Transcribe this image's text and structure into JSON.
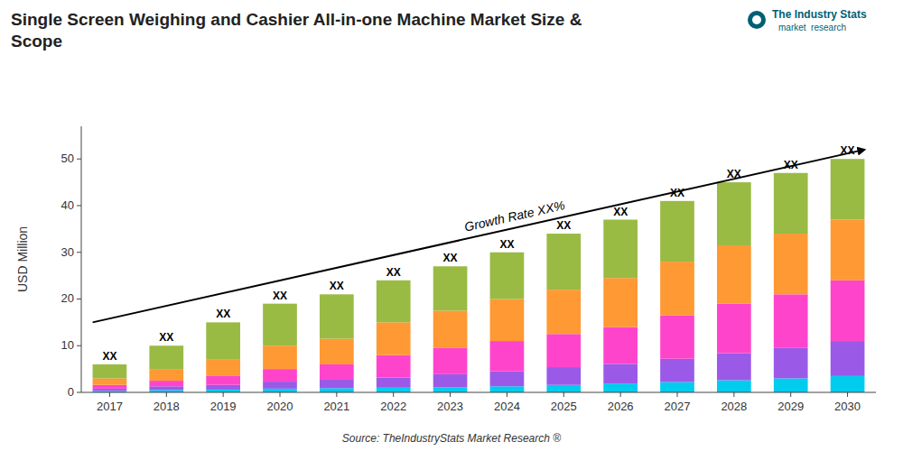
{
  "chart_data": {
    "type": "bar",
    "stacked": true,
    "grid": false,
    "title": "Single Screen Weighing and Cashier All-in-one Machine Market Size &\nScope",
    "y_label": "USD Million",
    "categories": [
      "2017",
      "2018",
      "2019",
      "2020",
      "2021",
      "2022",
      "2023",
      "2024",
      "2025",
      "2026",
      "2027",
      "2028",
      "2029",
      "2030"
    ],
    "series": [
      {
        "color": "#00CCEE",
        "values": [
          0.3,
          0.5,
          0.6,
          0.8,
          0.9,
          1.0,
          1.1,
          1.3,
          1.6,
          1.9,
          2.2,
          2.6,
          3.0,
          3.5
        ]
      },
      {
        "color": "#9B59E8",
        "values": [
          0.5,
          0.8,
          1.0,
          1.5,
          1.8,
          2.2,
          2.8,
          3.2,
          3.8,
          4.2,
          5.0,
          5.8,
          6.5,
          7.5
        ]
      },
      {
        "color": "#FF44CC",
        "values": [
          0.8,
          1.2,
          1.9,
          2.7,
          3.3,
          4.8,
          5.6,
          6.5,
          7.1,
          7.9,
          9.3,
          10.6,
          11.5,
          13.0
        ]
      },
      {
        "color": "#FF9933",
        "values": [
          1.4,
          2.5,
          3.5,
          5.0,
          5.5,
          7.0,
          8.0,
          9.0,
          9.5,
          10.5,
          11.5,
          12.5,
          13.0,
          13.0
        ]
      },
      {
        "color": "#99BB44",
        "values": [
          3.0,
          5.0,
          8.0,
          9.0,
          9.5,
          9.0,
          9.5,
          10.0,
          12.0,
          12.5,
          13.0,
          13.5,
          13.0,
          13.0
        ]
      }
    ],
    "ylim": [
      0,
      57
    ],
    "yticks": [
      0,
      10,
      20,
      30,
      40,
      50
    ],
    "annotations": [
      {
        "text": "XX",
        "x": "2017",
        "y": 6
      },
      {
        "text": "XX",
        "x": "2018",
        "y": 10
      },
      {
        "text": "XX",
        "x": "2019",
        "y": 15
      },
      {
        "text": "XX",
        "x": "2020",
        "y": 19
      },
      {
        "text": "XX",
        "x": "2021",
        "y": 21
      },
      {
        "text": "XX",
        "x": "2022",
        "y": 24
      },
      {
        "text": "XX",
        "x": "2023",
        "y": 27
      },
      {
        "text": "XX",
        "x": "2024",
        "y": 30
      },
      {
        "text": "XX",
        "x": "2025",
        "y": 34
      },
      {
        "text": "XX",
        "x": "2026",
        "y": 37
      },
      {
        "text": "XX",
        "x": "2027",
        "y": 41
      },
      {
        "text": "XX",
        "x": "2028",
        "y": 45
      },
      {
        "text": "XX",
        "x": "2029",
        "y": 47
      },
      {
        "text": "XX",
        "x": "2030",
        "y": 50
      },
      {
        "text": "Growth Rate XX%",
        "arrow_y": [
          15,
          52
        ]
      },
      {
        "text": "Source: TheIndustryStats Market Research ®"
      },
      {
        "text": "The Industry Stats"
      },
      {
        "text": "market  research"
      }
    ]
  }
}
